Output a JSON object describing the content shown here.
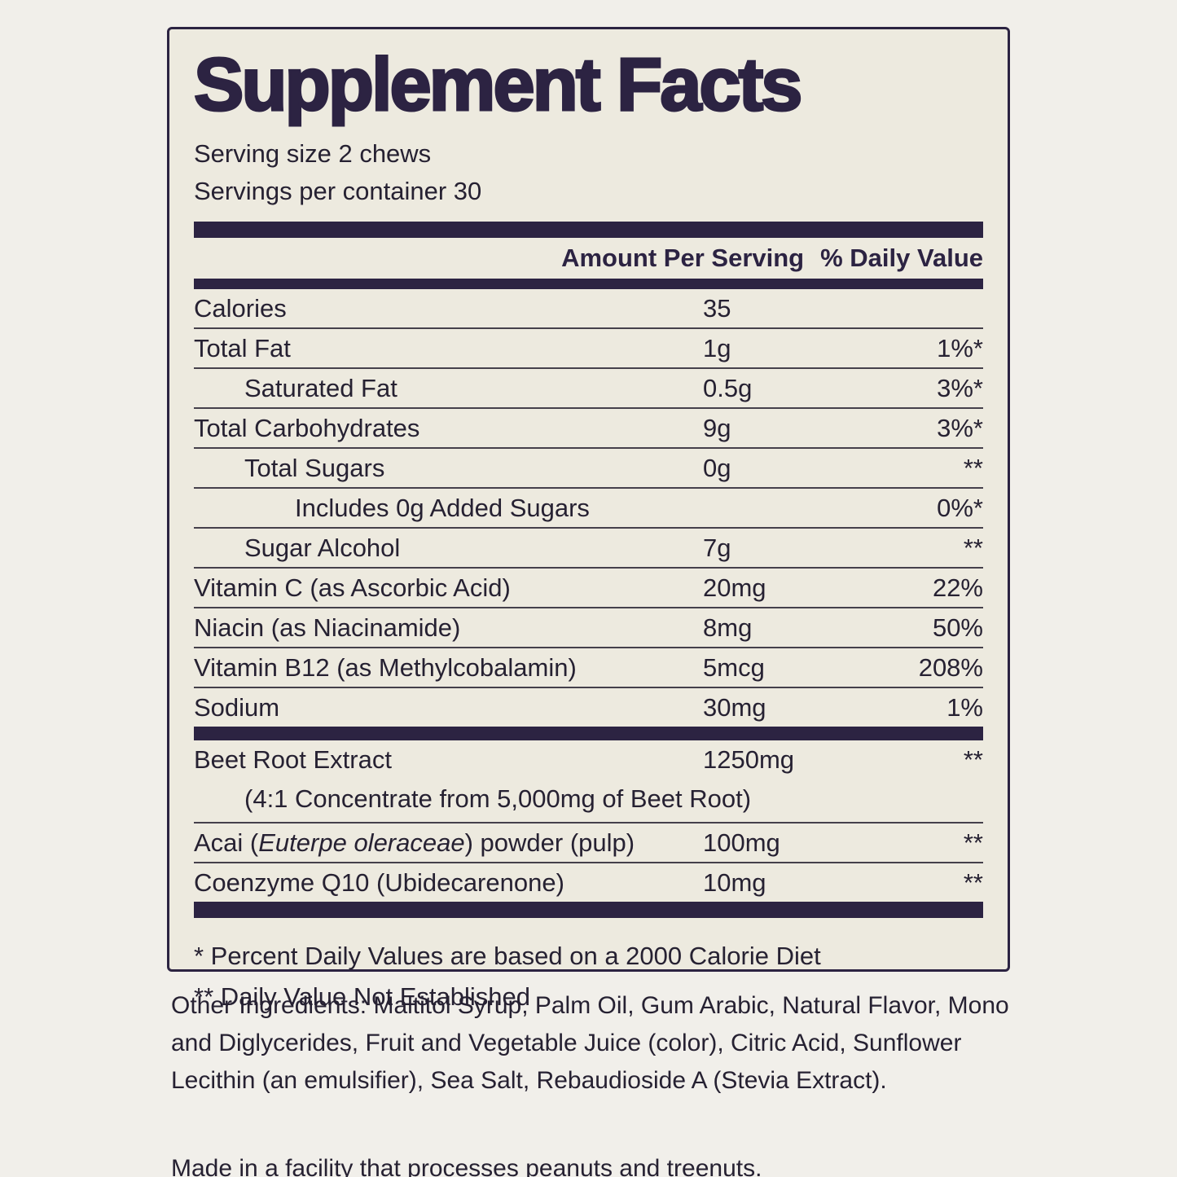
{
  "colors": {
    "page_background": "#f1efea",
    "label_background": "#edeadf",
    "accent_dark": "#2c2342",
    "text": "#262132"
  },
  "label": {
    "title": "Supplement Facts",
    "serving_size": "Serving size 2 chews",
    "servings_per_container": "Servings per container 30",
    "columns": {
      "amount": "Amount Per Serving",
      "daily_value": "% Daily Value"
    },
    "rows": [
      {
        "label": "Calories",
        "amount": "35",
        "dv": ""
      },
      {
        "label": "Total Fat",
        "amount": "1g",
        "dv": "1%*"
      },
      {
        "label": "Saturated Fat",
        "amount": "0.5g",
        "dv": "3%*"
      },
      {
        "label": "Total Carbohydrates",
        "amount": "9g",
        "dv": "3%*"
      },
      {
        "label": "Total Sugars",
        "amount": "0g",
        "dv": "**"
      },
      {
        "label": "Includes 0g Added Sugars",
        "amount": "",
        "dv": "0%*"
      },
      {
        "label": "Sugar Alcohol",
        "amount": "7g",
        "dv": "**"
      },
      {
        "label": "Vitamin C (as Ascorbic Acid)",
        "amount": "20mg",
        "dv": "22%"
      },
      {
        "label": "Niacin (as Niacinamide)",
        "amount": "8mg",
        "dv": "50%"
      },
      {
        "label": "Vitamin B12 (as Methylcobalamin)",
        "amount": "5mcg",
        "dv": "208%"
      },
      {
        "label": "Sodium",
        "amount": "30mg",
        "dv": "1%"
      }
    ],
    "beet": {
      "label": "Beet Root Extract",
      "amount": "1250mg",
      "dv": "**",
      "note": "(4:1 Concentrate from 5,000mg of Beet Root)"
    },
    "acai": {
      "prefix": "Acai (",
      "italic": "Euterpe oleraceae",
      "suffix": ") powder (pulp)",
      "amount": "100mg",
      "dv": "**"
    },
    "coq10": {
      "label": "Coenzyme Q10 (Ubidecarenone)",
      "amount": "10mg",
      "dv": "**"
    },
    "footnotes": [
      "* Percent Daily Values are based on a 2000 Calorie Diet",
      "** Daily Value Not Established"
    ]
  },
  "below": {
    "other_ingredients": "Other Ingredients: Maltitol Syrup, Palm Oil, Gum Arabic, Natural Flavor, Mono and Diglycerides, Fruit and Vegetable Juice (color), Citric Acid, Sunflower Lecithin (an emulsifier), Sea Salt, Rebaudioside A (Stevia Extract).",
    "allergen": "Made in a facility that processes peanuts and treenuts."
  }
}
